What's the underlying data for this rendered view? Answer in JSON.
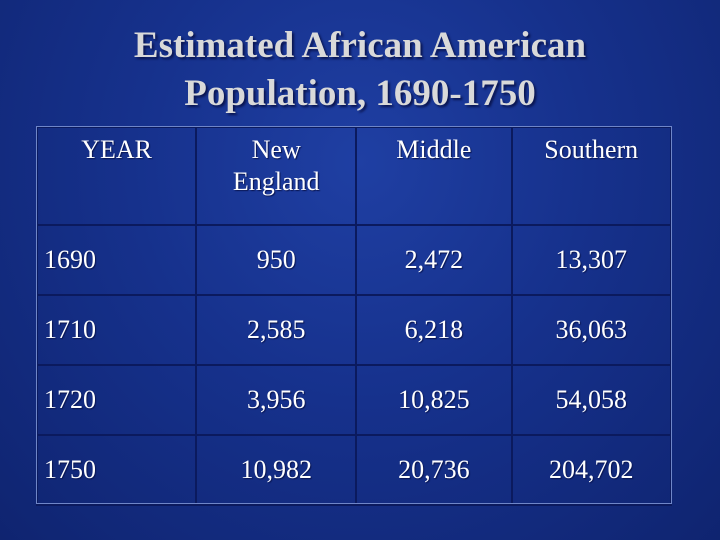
{
  "title": {
    "line1": "Estimated African American",
    "line2": "Population, 1690-1750"
  },
  "table": {
    "headers": [
      "YEAR",
      "New England",
      "Middle",
      "Southern"
    ],
    "rows": [
      {
        "year": "1690",
        "new_england": "950",
        "middle": "2,472",
        "southern": "13,307"
      },
      {
        "year": "1710",
        "new_england": "2,585",
        "middle": "6,218",
        "southern": "36,063"
      },
      {
        "year": "1720",
        "new_england": "3,956",
        "middle": "10,825",
        "southern": "54,058"
      },
      {
        "year": "1750",
        "new_england": "10,982",
        "middle": "20,736",
        "southern": "204,702"
      }
    ]
  },
  "colors": {
    "background": "#16318c",
    "title_text": "#d9d9d9",
    "cell_text": "#ffffff",
    "grid": "#0b1a5e"
  }
}
